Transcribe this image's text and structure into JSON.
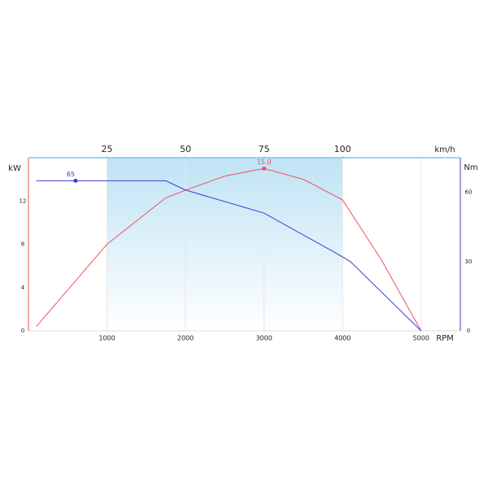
{
  "chart_data": {
    "type": "line",
    "xlabel": "RPM",
    "ylabel": "kW",
    "y2label": "Nm",
    "x2label": "km/h",
    "xlim": [
      0,
      5500
    ],
    "xticks": [
      1000,
      2000,
      3000,
      4000,
      5000
    ],
    "x2lim": [
      0,
      137.5
    ],
    "x2ticks": [
      25,
      50,
      75,
      100
    ],
    "ylim": [
      0,
      16
    ],
    "yticks": [
      0,
      4,
      8,
      12
    ],
    "y2lim": [
      0,
      75
    ],
    "y2ticks": [
      0,
      30,
      60
    ],
    "shade_x": [
      1000,
      4000
    ],
    "shade_color": "#bfe3f5",
    "grid": true,
    "series": [
      {
        "name": "kW",
        "color": "#f0505a",
        "axis": "y",
        "x": [
          100,
          1000,
          1750,
          2000,
          2500,
          3000,
          3500,
          4000,
          4500,
          5000
        ],
        "values": [
          0.4,
          8,
          12.3,
          13,
          14.3,
          15.0,
          14,
          12.1,
          6.5,
          0
        ],
        "value_labels": [
          null,
          null,
          null,
          null,
          null,
          "15.0",
          null,
          null,
          null,
          null
        ]
      },
      {
        "name": "Nm",
        "color": "#3a3ccf",
        "axis": "y2",
        "x": [
          100,
          600,
          1750,
          2000,
          3000,
          3900,
          4100,
          5000
        ],
        "values": [
          65,
          65,
          65,
          61,
          51,
          34,
          30,
          0
        ],
        "value_labels": [
          null,
          "65",
          null,
          null,
          null,
          null,
          null,
          null
        ]
      }
    ]
  }
}
